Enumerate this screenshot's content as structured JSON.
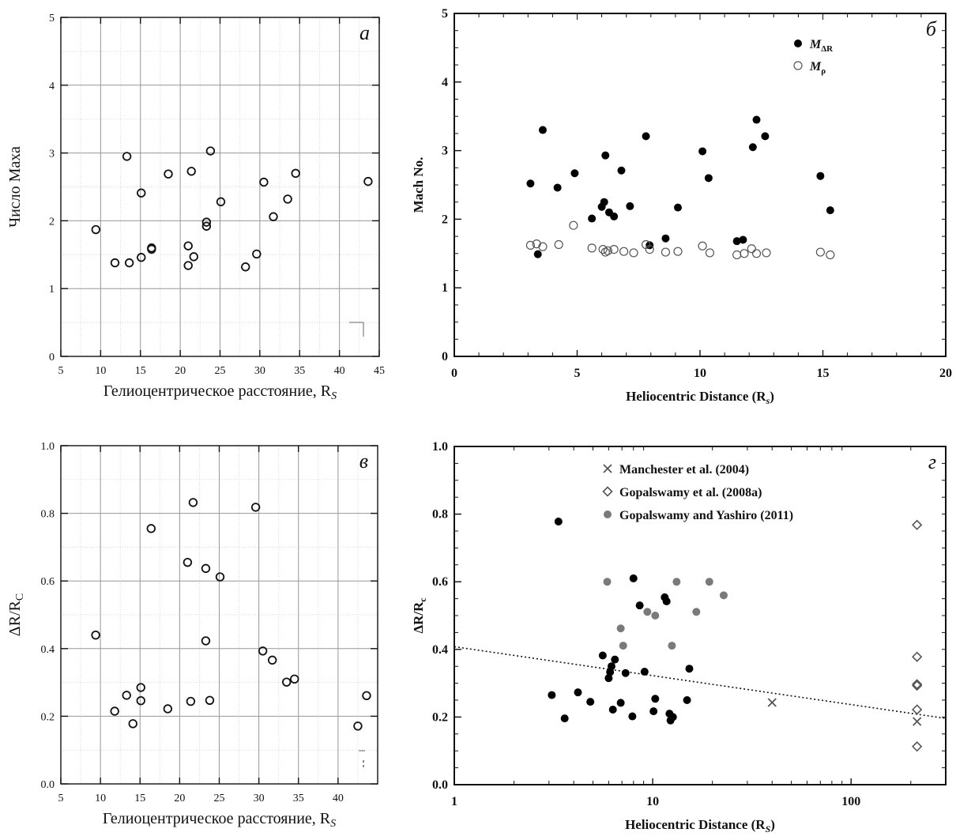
{
  "chart_data": [
    {
      "id": "a",
      "type": "scatter",
      "panel_label": "а",
      "xlabel": "Гелиоцентрическое расстояние, R",
      "xlabel_sub": "S",
      "ylabel": "Число Маха",
      "xlim": [
        5,
        45
      ],
      "ylim": [
        0,
        5
      ],
      "xticks": [
        "5",
        "10",
        "15",
        "20",
        "25",
        "30",
        "35",
        "40",
        "45"
      ],
      "yticks": [
        "0",
        "1",
        "2",
        "3",
        "4",
        "5"
      ],
      "grid": true,
      "series": [
        {
          "marker": "open-circle",
          "points": [
            [
              9.4,
              1.87
            ],
            [
              11.8,
              1.38
            ],
            [
              13.3,
              2.95
            ],
            [
              13.6,
              1.38
            ],
            [
              15.1,
              2.41
            ],
            [
              15.1,
              1.46
            ],
            [
              16.4,
              1.58
            ],
            [
              16.4,
              1.6
            ],
            [
              18.5,
              2.69
            ],
            [
              21.0,
              1.63
            ],
            [
              21.0,
              1.34
            ],
            [
              21.4,
              2.73
            ],
            [
              21.7,
              1.47
            ],
            [
              23.3,
              1.98
            ],
            [
              23.3,
              1.92
            ],
            [
              23.8,
              3.03
            ],
            [
              25.1,
              2.28
            ],
            [
              28.2,
              1.32
            ],
            [
              29.6,
              1.51
            ],
            [
              30.5,
              2.57
            ],
            [
              31.7,
              2.06
            ],
            [
              33.5,
              2.32
            ],
            [
              34.5,
              2.7
            ],
            [
              43.6,
              2.58
            ]
          ]
        }
      ]
    },
    {
      "id": "b",
      "type": "scatter",
      "panel_label": "б",
      "xlabel": "Heliocentric Distance (R",
      "xlabel_sub": "s",
      "xlabel_end": ")",
      "ylabel": "Mach No.",
      "xlim": [
        0,
        20
      ],
      "ylim": [
        0,
        5
      ],
      "xticks": [
        "0",
        "5",
        "10",
        "15",
        "20"
      ],
      "yticks": [
        "0",
        "1",
        "2",
        "3",
        "4",
        "5"
      ],
      "grid": false,
      "legend": {
        "position": "top-right",
        "entries": [
          {
            "label": "M",
            "sub": "ΔR",
            "marker": "filled-circle"
          },
          {
            "label": "M",
            "sub": "ρ",
            "marker": "open-circle"
          }
        ]
      },
      "series": [
        {
          "name": "MΔR",
          "marker": "filled-circle",
          "points": [
            [
              3.1,
              2.52
            ],
            [
              3.4,
              1.49
            ],
            [
              3.6,
              3.3
            ],
            [
              4.2,
              2.46
            ],
            [
              4.9,
              2.67
            ],
            [
              5.6,
              2.01
            ],
            [
              6.0,
              2.18
            ],
            [
              6.1,
              2.25
            ],
            [
              6.15,
              2.93
            ],
            [
              6.3,
              2.1
            ],
            [
              6.5,
              2.04
            ],
            [
              6.8,
              2.71
            ],
            [
              7.15,
              2.19
            ],
            [
              7.8,
              3.21
            ],
            [
              7.95,
              1.62
            ],
            [
              8.6,
              1.72
            ],
            [
              9.1,
              2.17
            ],
            [
              10.1,
              2.99
            ],
            [
              10.35,
              2.6
            ],
            [
              11.5,
              1.68
            ],
            [
              11.75,
              1.7
            ],
            [
              12.15,
              3.05
            ],
            [
              12.3,
              3.45
            ],
            [
              12.65,
              3.21
            ],
            [
              14.9,
              2.63
            ],
            [
              15.3,
              2.13
            ]
          ]
        },
        {
          "name": "Mρ",
          "marker": "open-circle",
          "points": [
            [
              3.1,
              1.62
            ],
            [
              3.35,
              1.64
            ],
            [
              3.6,
              1.6
            ],
            [
              4.25,
              1.63
            ],
            [
              4.85,
              1.91
            ],
            [
              5.6,
              1.58
            ],
            [
              6.05,
              1.56
            ],
            [
              6.15,
              1.52
            ],
            [
              6.25,
              1.54
            ],
            [
              6.5,
              1.56
            ],
            [
              6.9,
              1.53
            ],
            [
              7.3,
              1.51
            ],
            [
              7.8,
              1.63
            ],
            [
              7.95,
              1.56
            ],
            [
              8.6,
              1.52
            ],
            [
              9.1,
              1.53
            ],
            [
              10.1,
              1.61
            ],
            [
              10.4,
              1.51
            ],
            [
              11.5,
              1.48
            ],
            [
              11.8,
              1.5
            ],
            [
              12.1,
              1.57
            ],
            [
              12.3,
              1.5
            ],
            [
              12.7,
              1.51
            ],
            [
              14.9,
              1.52
            ],
            [
              15.3,
              1.48
            ]
          ]
        }
      ]
    },
    {
      "id": "v",
      "type": "scatter",
      "panel_label": "в",
      "xlabel": "Гелиоцентрическое расстояние, R",
      "xlabel_sub": "S",
      "ylabel": "ΔR/R",
      "ylabel_sub": "C",
      "xlim": [
        5,
        45
      ],
      "ylim": [
        0,
        1
      ],
      "xticks": [
        "5",
        "10",
        "15",
        "20",
        "25",
        "30",
        "35",
        "40"
      ],
      "yticks": [
        "0.0",
        "0.2",
        "0.4",
        "0.6",
        "0.8",
        "1.0"
      ],
      "grid": true,
      "series": [
        {
          "marker": "open-circle",
          "points": [
            [
              9.4,
              0.44
            ],
            [
              11.8,
              0.215
            ],
            [
              13.3,
              0.262
            ],
            [
              14.1,
              0.178
            ],
            [
              15.1,
              0.285
            ],
            [
              15.1,
              0.246
            ],
            [
              16.4,
              0.755
            ],
            [
              18.5,
              0.222
            ],
            [
              21.0,
              0.655
            ],
            [
              21.4,
              0.244
            ],
            [
              21.7,
              0.832
            ],
            [
              23.3,
              0.637
            ],
            [
              23.3,
              0.423
            ],
            [
              23.8,
              0.247
            ],
            [
              25.1,
              0.612
            ],
            [
              29.6,
              0.818
            ],
            [
              30.5,
              0.393
            ],
            [
              31.7,
              0.366
            ],
            [
              33.5,
              0.301
            ],
            [
              34.5,
              0.31
            ],
            [
              42.5,
              0.171
            ],
            [
              43.6,
              0.261
            ]
          ]
        }
      ]
    },
    {
      "id": "g",
      "type": "scatter",
      "panel_label": "г",
      "xlabel": "Heliocentric Distance (R",
      "xlabel_sub": "S",
      "xlabel_end": ")",
      "ylabel": "ΔR/R",
      "ylabel_sub": "c",
      "xscale": "log",
      "xlim": [
        1,
        300
      ],
      "ylim": [
        0,
        1
      ],
      "xticks": [
        "1",
        "10",
        "100"
      ],
      "yticks": [
        "0.0",
        "0.2",
        "0.4",
        "0.6",
        "0.8",
        "1.0"
      ],
      "grid": false,
      "legend": {
        "position": "top-center",
        "entries": [
          {
            "label": "Manchester et al. (2004)",
            "marker": "cross"
          },
          {
            "label": "Gopalswamy et al. (2008a)",
            "marker": "open-diamond"
          },
          {
            "label": "Gopalswamy and Yashiro (2011)",
            "marker": "gray-circle"
          }
        ]
      },
      "series": [
        {
          "marker": "filled-circle",
          "points": [
            [
              3.1,
              0.265
            ],
            [
              3.35,
              0.778
            ],
            [
              3.6,
              0.196
            ],
            [
              4.2,
              0.273
            ],
            [
              4.85,
              0.245
            ],
            [
              5.6,
              0.382
            ],
            [
              6.0,
              0.315
            ],
            [
              6.1,
              0.333
            ],
            [
              6.2,
              0.35
            ],
            [
              6.3,
              0.222
            ],
            [
              6.45,
              0.37
            ],
            [
              6.9,
              0.242
            ],
            [
              7.3,
              0.33
            ],
            [
              7.9,
              0.202
            ],
            [
              8.0,
              0.61
            ],
            [
              8.6,
              0.53
            ],
            [
              9.1,
              0.334
            ],
            [
              10.1,
              0.217
            ],
            [
              10.3,
              0.254
            ],
            [
              11.5,
              0.554
            ],
            [
              11.75,
              0.542
            ],
            [
              12.15,
              0.21
            ],
            [
              12.3,
              0.19
            ],
            [
              12.65,
              0.2
            ],
            [
              14.9,
              0.25
            ],
            [
              15.3,
              0.343
            ]
          ]
        },
        {
          "name": "Manchester et al. (2004)",
          "marker": "cross",
          "points": [
            [
              40,
              0.243
            ],
            [
              215,
              0.187
            ]
          ]
        },
        {
          "name": "Gopalswamy et al. (2008a)",
          "marker": "open-diamond",
          "points": [
            [
              215,
              0.768
            ],
            [
              215,
              0.378
            ],
            [
              215,
              0.297
            ],
            [
              215,
              0.293
            ],
            [
              215,
              0.222
            ],
            [
              215,
              0.113
            ]
          ]
        },
        {
          "name": "Gopalswamy and Yashiro (2011)",
          "marker": "gray-circle",
          "points": [
            [
              5.9,
              0.6
            ],
            [
              6.9,
              0.462
            ],
            [
              7.1,
              0.411
            ],
            [
              9.4,
              0.511
            ],
            [
              10.3,
              0.5
            ],
            [
              12.5,
              0.411
            ],
            [
              13.2,
              0.6
            ],
            [
              16.6,
              0.511
            ],
            [
              19.3,
              0.6
            ],
            [
              22.8,
              0.56
            ]
          ]
        }
      ],
      "trend_line": {
        "style": "dotted",
        "points": [
          [
            1,
            0.408
          ],
          [
            300,
            0.196
          ]
        ]
      }
    }
  ]
}
